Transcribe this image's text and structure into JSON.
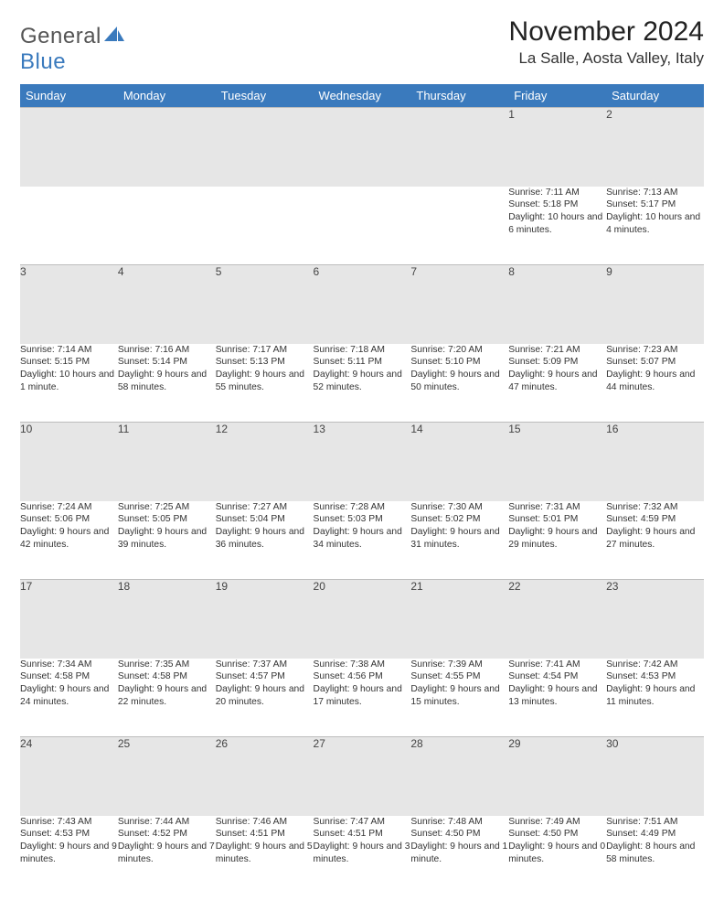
{
  "logo": {
    "text1": "General",
    "text2": "Blue"
  },
  "title": "November 2024",
  "location": "La Salle, Aosta Valley, Italy",
  "colors": {
    "header_bg": "#3a7abd",
    "daynum_bg": "#e6e6e6",
    "border": "#bdbdbd",
    "text": "#333333"
  },
  "weekdays": [
    "Sunday",
    "Monday",
    "Tuesday",
    "Wednesday",
    "Thursday",
    "Friday",
    "Saturday"
  ],
  "weeks": [
    [
      {
        "n": "",
        "sr": "",
        "ss": "",
        "dl": ""
      },
      {
        "n": "",
        "sr": "",
        "ss": "",
        "dl": ""
      },
      {
        "n": "",
        "sr": "",
        "ss": "",
        "dl": ""
      },
      {
        "n": "",
        "sr": "",
        "ss": "",
        "dl": ""
      },
      {
        "n": "",
        "sr": "",
        "ss": "",
        "dl": ""
      },
      {
        "n": "1",
        "sr": "Sunrise: 7:11 AM",
        "ss": "Sunset: 5:18 PM",
        "dl": "Daylight: 10 hours and 6 minutes."
      },
      {
        "n": "2",
        "sr": "Sunrise: 7:13 AM",
        "ss": "Sunset: 5:17 PM",
        "dl": "Daylight: 10 hours and 4 minutes."
      }
    ],
    [
      {
        "n": "3",
        "sr": "Sunrise: 7:14 AM",
        "ss": "Sunset: 5:15 PM",
        "dl": "Daylight: 10 hours and 1 minute."
      },
      {
        "n": "4",
        "sr": "Sunrise: 7:16 AM",
        "ss": "Sunset: 5:14 PM",
        "dl": "Daylight: 9 hours and 58 minutes."
      },
      {
        "n": "5",
        "sr": "Sunrise: 7:17 AM",
        "ss": "Sunset: 5:13 PM",
        "dl": "Daylight: 9 hours and 55 minutes."
      },
      {
        "n": "6",
        "sr": "Sunrise: 7:18 AM",
        "ss": "Sunset: 5:11 PM",
        "dl": "Daylight: 9 hours and 52 minutes."
      },
      {
        "n": "7",
        "sr": "Sunrise: 7:20 AM",
        "ss": "Sunset: 5:10 PM",
        "dl": "Daylight: 9 hours and 50 minutes."
      },
      {
        "n": "8",
        "sr": "Sunrise: 7:21 AM",
        "ss": "Sunset: 5:09 PM",
        "dl": "Daylight: 9 hours and 47 minutes."
      },
      {
        "n": "9",
        "sr": "Sunrise: 7:23 AM",
        "ss": "Sunset: 5:07 PM",
        "dl": "Daylight: 9 hours and 44 minutes."
      }
    ],
    [
      {
        "n": "10",
        "sr": "Sunrise: 7:24 AM",
        "ss": "Sunset: 5:06 PM",
        "dl": "Daylight: 9 hours and 42 minutes."
      },
      {
        "n": "11",
        "sr": "Sunrise: 7:25 AM",
        "ss": "Sunset: 5:05 PM",
        "dl": "Daylight: 9 hours and 39 minutes."
      },
      {
        "n": "12",
        "sr": "Sunrise: 7:27 AM",
        "ss": "Sunset: 5:04 PM",
        "dl": "Daylight: 9 hours and 36 minutes."
      },
      {
        "n": "13",
        "sr": "Sunrise: 7:28 AM",
        "ss": "Sunset: 5:03 PM",
        "dl": "Daylight: 9 hours and 34 minutes."
      },
      {
        "n": "14",
        "sr": "Sunrise: 7:30 AM",
        "ss": "Sunset: 5:02 PM",
        "dl": "Daylight: 9 hours and 31 minutes."
      },
      {
        "n": "15",
        "sr": "Sunrise: 7:31 AM",
        "ss": "Sunset: 5:01 PM",
        "dl": "Daylight: 9 hours and 29 minutes."
      },
      {
        "n": "16",
        "sr": "Sunrise: 7:32 AM",
        "ss": "Sunset: 4:59 PM",
        "dl": "Daylight: 9 hours and 27 minutes."
      }
    ],
    [
      {
        "n": "17",
        "sr": "Sunrise: 7:34 AM",
        "ss": "Sunset: 4:58 PM",
        "dl": "Daylight: 9 hours and 24 minutes."
      },
      {
        "n": "18",
        "sr": "Sunrise: 7:35 AM",
        "ss": "Sunset: 4:58 PM",
        "dl": "Daylight: 9 hours and 22 minutes."
      },
      {
        "n": "19",
        "sr": "Sunrise: 7:37 AM",
        "ss": "Sunset: 4:57 PM",
        "dl": "Daylight: 9 hours and 20 minutes."
      },
      {
        "n": "20",
        "sr": "Sunrise: 7:38 AM",
        "ss": "Sunset: 4:56 PM",
        "dl": "Daylight: 9 hours and 17 minutes."
      },
      {
        "n": "21",
        "sr": "Sunrise: 7:39 AM",
        "ss": "Sunset: 4:55 PM",
        "dl": "Daylight: 9 hours and 15 minutes."
      },
      {
        "n": "22",
        "sr": "Sunrise: 7:41 AM",
        "ss": "Sunset: 4:54 PM",
        "dl": "Daylight: 9 hours and 13 minutes."
      },
      {
        "n": "23",
        "sr": "Sunrise: 7:42 AM",
        "ss": "Sunset: 4:53 PM",
        "dl": "Daylight: 9 hours and 11 minutes."
      }
    ],
    [
      {
        "n": "24",
        "sr": "Sunrise: 7:43 AM",
        "ss": "Sunset: 4:53 PM",
        "dl": "Daylight: 9 hours and 9 minutes."
      },
      {
        "n": "25",
        "sr": "Sunrise: 7:44 AM",
        "ss": "Sunset: 4:52 PM",
        "dl": "Daylight: 9 hours and 7 minutes."
      },
      {
        "n": "26",
        "sr": "Sunrise: 7:46 AM",
        "ss": "Sunset: 4:51 PM",
        "dl": "Daylight: 9 hours and 5 minutes."
      },
      {
        "n": "27",
        "sr": "Sunrise: 7:47 AM",
        "ss": "Sunset: 4:51 PM",
        "dl": "Daylight: 9 hours and 3 minutes."
      },
      {
        "n": "28",
        "sr": "Sunrise: 7:48 AM",
        "ss": "Sunset: 4:50 PM",
        "dl": "Daylight: 9 hours and 1 minute."
      },
      {
        "n": "29",
        "sr": "Sunrise: 7:49 AM",
        "ss": "Sunset: 4:50 PM",
        "dl": "Daylight: 9 hours and 0 minutes."
      },
      {
        "n": "30",
        "sr": "Sunrise: 7:51 AM",
        "ss": "Sunset: 4:49 PM",
        "dl": "Daylight: 8 hours and 58 minutes."
      }
    ]
  ]
}
